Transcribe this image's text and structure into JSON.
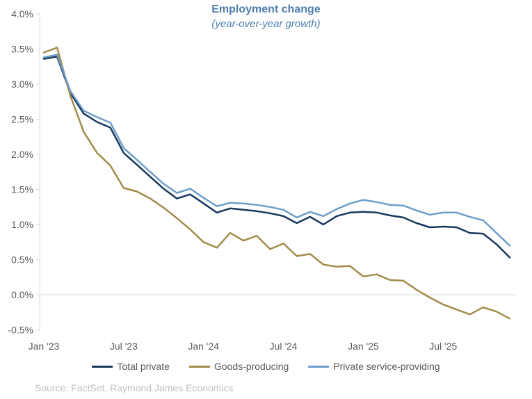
{
  "header": {
    "title": "Employment change",
    "subtitle": "(year-over-year growth)"
  },
  "source_note": "Source: FactSet, Raymond James Economics",
  "colors": {
    "title_text": "#4d7eae",
    "axis_text": "#595959",
    "legend_text": "#595959",
    "grid_line": "#d9d9d9",
    "axis_line": "#d9d9d9",
    "source_text": "#bfbfbf",
    "total_private": "#17375d",
    "goods_producing": "#a18c4a",
    "private_service": "#6d9ec9"
  },
  "chart_data": {
    "type": "line",
    "title": "Employment change",
    "subtitle": "(year-over-year growth)",
    "ylabel": "",
    "xlabel": "",
    "ylim": [
      -0.5,
      4.0
    ],
    "grid": "zero-line-only",
    "legend_position": "bottom",
    "y_ticks": [
      {
        "value": 4.0,
        "label": "4.0%"
      },
      {
        "value": 3.5,
        "label": "3.5%"
      },
      {
        "value": 3.0,
        "label": "3.0%"
      },
      {
        "value": 2.5,
        "label": "2.5%"
      },
      {
        "value": 2.0,
        "label": "2.0%"
      },
      {
        "value": 1.5,
        "label": "1.5%"
      },
      {
        "value": 1.0,
        "label": "1.0%"
      },
      {
        "value": 0.5,
        "label": "0.5%"
      },
      {
        "value": 0.0,
        "label": "0.0%"
      },
      {
        "value": -0.5,
        "label": "-0.5%"
      }
    ],
    "x_ticks": [
      {
        "month_index": 0,
        "label": "Jan '23"
      },
      {
        "month_index": 6,
        "label": "Jul '23"
      },
      {
        "month_index": 12,
        "label": "Jan '24"
      },
      {
        "month_index": 18,
        "label": "Jul '24"
      },
      {
        "month_index": 24,
        "label": "Jan '25"
      },
      {
        "month_index": 30,
        "label": "Jul '25"
      }
    ],
    "x": [
      "Jan '23",
      "Feb '23",
      "Mar '23",
      "Apr '23",
      "May '23",
      "Jun '23",
      "Jul '23",
      "Aug '23",
      "Sep '23",
      "Oct '23",
      "Nov '23",
      "Dec '23",
      "Jan '24",
      "Feb '24",
      "Mar '24",
      "Apr '24",
      "May '24",
      "Jun '24",
      "Jul '24",
      "Aug '24",
      "Sep '24",
      "Oct '24",
      "Nov '24",
      "Dec '24",
      "Jan '25",
      "Feb '25",
      "Mar '25",
      "Apr '25",
      "May '25",
      "Jun '25",
      "Jul '25",
      "Aug '25",
      "Sep '25",
      "Oct '25",
      "Nov '25",
      "Dec '25"
    ],
    "series": [
      {
        "name": "Total private",
        "color": "#17375d",
        "values": [
          3.36,
          3.39,
          2.87,
          2.58,
          2.46,
          2.38,
          2.02,
          1.85,
          1.68,
          1.51,
          1.37,
          1.43,
          1.3,
          1.17,
          1.23,
          1.21,
          1.19,
          1.16,
          1.12,
          1.02,
          1.11,
          1.0,
          1.12,
          1.17,
          1.18,
          1.17,
          1.13,
          1.1,
          1.02,
          0.96,
          0.97,
          0.96,
          0.88,
          0.87,
          0.72,
          0.53
        ]
      },
      {
        "name": "Goods-producing",
        "color": "#a18c4a",
        "values": [
          3.45,
          3.52,
          2.83,
          2.32,
          2.02,
          1.84,
          1.52,
          1.47,
          1.37,
          1.24,
          1.09,
          0.93,
          0.75,
          0.67,
          0.88,
          0.77,
          0.84,
          0.65,
          0.73,
          0.55,
          0.58,
          0.43,
          0.4,
          0.41,
          0.26,
          0.29,
          0.21,
          0.2,
          0.07,
          -0.04,
          -0.14,
          -0.21,
          -0.28,
          -0.18,
          -0.24,
          -0.34
        ]
      },
      {
        "name": "Private service-providing",
        "color": "#6d9ec9",
        "values": [
          3.38,
          3.42,
          2.9,
          2.62,
          2.53,
          2.45,
          2.09,
          1.92,
          1.75,
          1.58,
          1.45,
          1.51,
          1.38,
          1.26,
          1.31,
          1.3,
          1.28,
          1.25,
          1.21,
          1.1,
          1.18,
          1.12,
          1.22,
          1.3,
          1.35,
          1.32,
          1.28,
          1.27,
          1.2,
          1.14,
          1.17,
          1.17,
          1.11,
          1.06,
          0.88,
          0.7
        ]
      }
    ]
  }
}
